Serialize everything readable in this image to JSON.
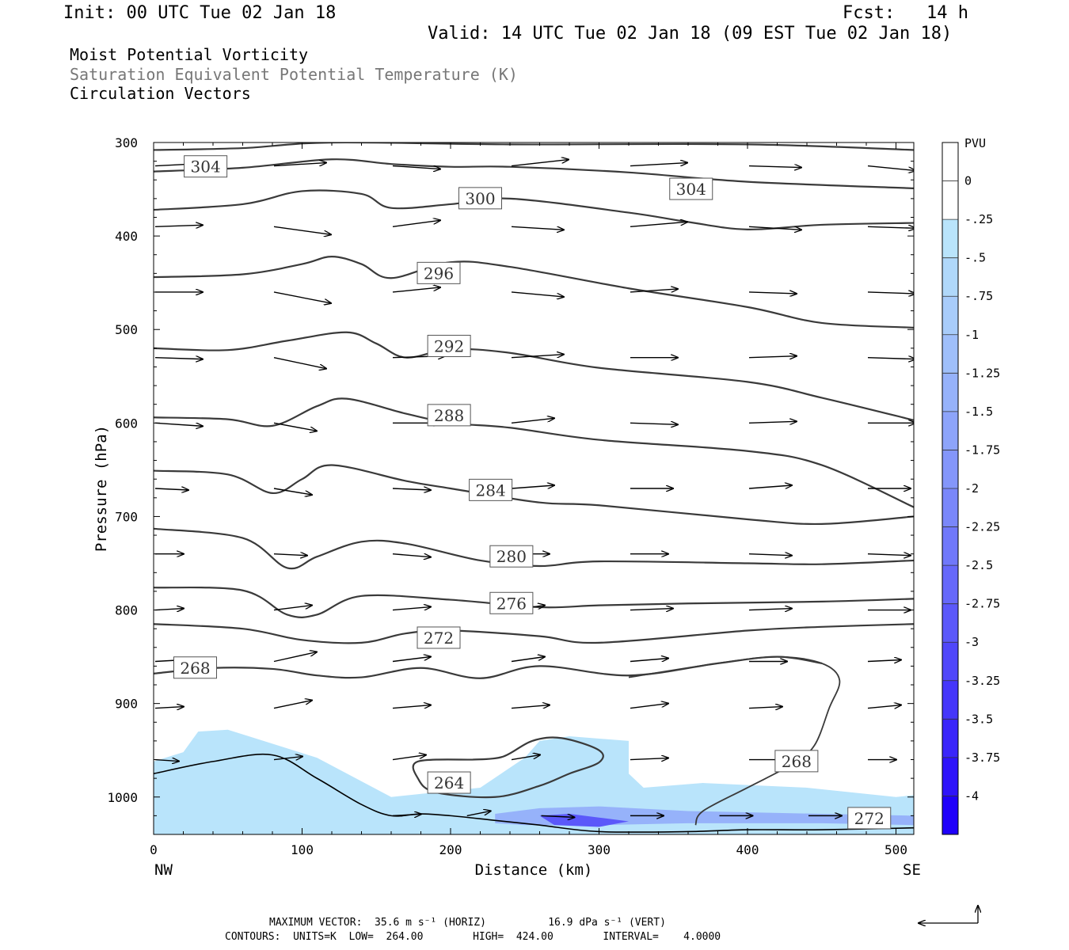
{
  "header": {
    "init": "Init: 00 UTC Tue 02 Jan 18",
    "fcst": "Fcst:   14 h",
    "valid": "Valid: 14 UTC Tue 02 Jan 18 (09 EST Tue 02 Jan 18)",
    "legend_lines": [
      {
        "text": "Moist Potential Vorticity",
        "color": "#000000"
      },
      {
        "text": "Saturation Equivalent Potential Temperature (K)",
        "color": "#777777"
      },
      {
        "text": "Circulation Vectors",
        "color": "#000000"
      }
    ]
  },
  "chart_data": {
    "type": "contour",
    "xlabel": "Distance (km)",
    "ylabel": "Pressure (hPa)",
    "xlim": [
      0,
      512
    ],
    "ylim_pressure": [
      300,
      1040
    ],
    "x_ticks": [
      0,
      100,
      200,
      300,
      400,
      500
    ],
    "y_ticks": [
      300,
      400,
      500,
      600,
      700,
      800,
      900,
      1000
    ],
    "x_end_labels": {
      "left": "NW",
      "right": "SE"
    },
    "colorbar": {
      "unit_label": "PVU",
      "levels": [
        "0",
        "-.25",
        "-.5",
        "-.75",
        "-1",
        "-1.25",
        "-1.5",
        "-1.75",
        "-2",
        "-2.25",
        "-2.5",
        "-2.75",
        "-3",
        "-3.25",
        "-3.5",
        "-3.75",
        "-4"
      ],
      "colors": [
        "#ffffff",
        "#ffffff",
        "#b9e4fb",
        "#b0d8fa",
        "#a8ccfa",
        "#9fbffa",
        "#96b2fa",
        "#8da4fa",
        "#8496fa",
        "#7a87fa",
        "#7078fa",
        "#6668fa",
        "#5b58fa",
        "#5047fa",
        "#4536fa",
        "#3a25fa",
        "#2e13fa",
        "#1f00fa"
      ]
    },
    "contour_labels": [
      {
        "value": "304",
        "x": 35,
        "p": 326
      },
      {
        "value": "304",
        "x": 362,
        "p": 350
      },
      {
        "value": "300",
        "x": 220,
        "p": 360
      },
      {
        "value": "296",
        "x": 192,
        "p": 440
      },
      {
        "value": "292",
        "x": 199,
        "p": 518
      },
      {
        "value": "288",
        "x": 199,
        "p": 592
      },
      {
        "value": "284",
        "x": 227,
        "p": 672
      },
      {
        "value": "280",
        "x": 241,
        "p": 743
      },
      {
        "value": "276",
        "x": 241,
        "p": 793
      },
      {
        "value": "272",
        "x": 192,
        "p": 830
      },
      {
        "value": "268",
        "x": 28,
        "p": 862
      },
      {
        "value": "264",
        "x": 199,
        "p": 985
      },
      {
        "value": "268",
        "x": 433,
        "p": 962
      },
      {
        "value": "272",
        "x": 482,
        "p": 1023
      }
    ],
    "theta_lines": [
      [
        [
          0,
          308
        ],
        [
          60,
          306
        ],
        [
          120,
          300
        ],
        [
          240,
          302
        ],
        [
          400,
          302
        ],
        [
          512,
          308
        ]
      ],
      [
        [
          0,
          331
        ],
        [
          60,
          327
        ],
        [
          120,
          318
        ],
        [
          160,
          323
        ],
        [
          200,
          326
        ],
        [
          240,
          326
        ],
        [
          320,
          332
        ],
        [
          400,
          342
        ],
        [
          512,
          349
        ]
      ],
      [
        [
          0,
          372
        ],
        [
          60,
          366
        ],
        [
          100,
          352
        ],
        [
          140,
          355
        ],
        [
          160,
          370
        ],
        [
          200,
          366
        ],
        [
          240,
          360
        ],
        [
          320,
          375
        ],
        [
          360,
          385
        ],
        [
          400,
          393
        ],
        [
          450,
          388
        ],
        [
          512,
          386
        ]
      ],
      [
        [
          0,
          444
        ],
        [
          60,
          441
        ],
        [
          100,
          430
        ],
        [
          120,
          422
        ],
        [
          140,
          430
        ],
        [
          160,
          445
        ],
        [
          200,
          428
        ],
        [
          240,
          433
        ],
        [
          320,
          456
        ],
        [
          400,
          476
        ],
        [
          450,
          493
        ],
        [
          512,
          498
        ]
      ],
      [
        [
          0,
          520
        ],
        [
          50,
          522
        ],
        [
          90,
          512
        ],
        [
          130,
          503
        ],
        [
          150,
          515
        ],
        [
          170,
          530
        ],
        [
          200,
          521
        ],
        [
          240,
          525
        ],
        [
          300,
          541
        ],
        [
          400,
          556
        ],
        [
          450,
          573
        ],
        [
          512,
          597
        ]
      ],
      [
        [
          0,
          594
        ],
        [
          50,
          596
        ],
        [
          80,
          603
        ],
        [
          110,
          582
        ],
        [
          130,
          574
        ],
        [
          170,
          590
        ],
        [
          200,
          600
        ],
        [
          240,
          605
        ],
        [
          300,
          618
        ],
        [
          400,
          630
        ],
        [
          450,
          645
        ],
        [
          512,
          690
        ]
      ],
      [
        [
          0,
          651
        ],
        [
          50,
          655
        ],
        [
          80,
          675
        ],
        [
          100,
          660
        ],
        [
          120,
          645
        ],
        [
          170,
          662
        ],
        [
          200,
          670
        ],
        [
          260,
          685
        ],
        [
          300,
          688
        ],
        [
          400,
          703
        ],
        [
          450,
          708
        ],
        [
          512,
          700
        ]
      ],
      [
        [
          0,
          713
        ],
        [
          60,
          723
        ],
        [
          90,
          755
        ],
        [
          110,
          743
        ],
        [
          140,
          727
        ],
        [
          170,
          729
        ],
        [
          220,
          747
        ],
        [
          260,
          753
        ],
        [
          300,
          748
        ],
        [
          400,
          750
        ],
        [
          450,
          751
        ],
        [
          512,
          747
        ]
      ],
      [
        [
          0,
          776
        ],
        [
          60,
          779
        ],
        [
          90,
          805
        ],
        [
          110,
          805
        ],
        [
          140,
          785
        ],
        [
          200,
          789
        ],
        [
          260,
          797
        ],
        [
          300,
          795
        ],
        [
          360,
          793
        ],
        [
          450,
          791
        ],
        [
          512,
          788
        ]
      ],
      [
        [
          0,
          815
        ],
        [
          60,
          820
        ],
        [
          100,
          832
        ],
        [
          140,
          835
        ],
        [
          170,
          825
        ],
        [
          200,
          822
        ],
        [
          260,
          828
        ],
        [
          300,
          835
        ],
        [
          400,
          822
        ],
        [
          450,
          818
        ],
        [
          512,
          815
        ]
      ],
      [
        [
          0,
          868
        ],
        [
          40,
          862
        ],
        [
          80,
          863
        ],
        [
          110,
          870
        ],
        [
          140,
          872
        ],
        [
          180,
          862
        ],
        [
          220,
          873
        ],
        [
          260,
          860
        ],
        [
          320,
          870
        ],
        [
          380,
          857
        ],
        [
          420,
          850
        ],
        [
          450,
          857
        ]
      ]
    ],
    "closed_268": [
      [
        320,
        872
      ],
      [
        380,
        857
      ],
      [
        420,
        850
      ],
      [
        450,
        857
      ],
      [
        462,
        875
      ],
      [
        455,
        905
      ],
      [
        445,
        945
      ],
      [
        430,
        965
      ],
      [
        400,
        990
      ],
      [
        370,
        1015
      ],
      [
        365,
        1030
      ]
    ],
    "closed_264": [
      [
        215,
        960
      ],
      [
        235,
        957
      ],
      [
        255,
        940
      ],
      [
        275,
        937
      ],
      [
        300,
        950
      ],
      [
        300,
        963
      ],
      [
        280,
        975
      ],
      [
        260,
        988
      ],
      [
        230,
        1000
      ],
      [
        190,
        995
      ],
      [
        178,
        980
      ],
      [
        178,
        962
      ],
      [
        215,
        960
      ]
    ],
    "shade_light": [
      [
        0,
        962
      ],
      [
        20,
        952
      ],
      [
        30,
        930
      ],
      [
        50,
        928
      ],
      [
        70,
        938
      ],
      [
        110,
        958
      ],
      [
        160,
        1000
      ],
      [
        220,
        990
      ],
      [
        250,
        958
      ],
      [
        260,
        940
      ],
      [
        280,
        935
      ],
      [
        320,
        940
      ],
      [
        320,
        975
      ],
      [
        330,
        990
      ],
      [
        370,
        985
      ],
      [
        440,
        990
      ],
      [
        500,
        1000
      ],
      [
        512,
        998
      ],
      [
        512,
        1040
      ],
      [
        0,
        1040
      ]
    ],
    "shade_mid": [
      [
        230,
        1018
      ],
      [
        260,
        1012
      ],
      [
        300,
        1010
      ],
      [
        360,
        1015
      ],
      [
        450,
        1018
      ],
      [
        512,
        1020
      ],
      [
        512,
        1030
      ],
      [
        450,
        1028
      ],
      [
        360,
        1028
      ],
      [
        300,
        1030
      ],
      [
        250,
        1030
      ],
      [
        230,
        1028
      ]
    ],
    "shade_dark": [
      [
        260,
        1020
      ],
      [
        280,
        1018
      ],
      [
        300,
        1022
      ],
      [
        320,
        1026
      ],
      [
        300,
        1032
      ],
      [
        270,
        1030
      ]
    ],
    "terrain": [
      [
        0,
        975
      ],
      [
        40,
        962
      ],
      [
        80,
        955
      ],
      [
        110,
        980
      ],
      [
        140,
        1008
      ],
      [
        160,
        1020
      ],
      [
        180,
        1018
      ],
      [
        200,
        1020
      ],
      [
        230,
        1025
      ],
      [
        260,
        1030
      ],
      [
        300,
        1037
      ],
      [
        360,
        1037
      ],
      [
        400,
        1035
      ],
      [
        450,
        1035
      ],
      [
        512,
        1033
      ]
    ],
    "vector_rows": [
      {
        "p": 325,
        "xs": [
          0,
          80,
          160,
          240,
          320,
          400,
          480
        ],
        "u": [
          1.0,
          1.1,
          1.0,
          1.2,
          1.2,
          1.1,
          1.0
        ],
        "w": [
          -3,
          -4,
          4,
          -8,
          -4,
          2,
          6
        ]
      },
      {
        "p": 390,
        "xs": [
          0,
          80,
          160,
          240,
          320,
          400,
          480
        ],
        "u": [
          1.0,
          1.2,
          1.0,
          1.1,
          1.2,
          1.1,
          1.0
        ],
        "w": [
          -2,
          10,
          -8,
          4,
          -6,
          4,
          2
        ]
      },
      {
        "p": 460,
        "xs": [
          0,
          80,
          160,
          240,
          320,
          400,
          480
        ],
        "u": [
          1.0,
          1.2,
          1.0,
          1.1,
          1.0,
          1.0,
          1.0
        ],
        "w": [
          0,
          14,
          -6,
          6,
          -4,
          2,
          2
        ]
      },
      {
        "p": 530,
        "xs": [
          0,
          80,
          160,
          240,
          320,
          400,
          480
        ],
        "u": [
          1.0,
          1.1,
          1.1,
          1.1,
          1.0,
          1.0,
          1.0
        ],
        "w": [
          2,
          14,
          -2,
          -4,
          0,
          -2,
          2
        ]
      },
      {
        "p": 600,
        "xs": [
          0,
          80,
          160,
          240,
          320,
          400,
          480
        ],
        "u": [
          1.0,
          0.9,
          1.0,
          0.9,
          1.0,
          1.0,
          1.0
        ],
        "w": [
          4,
          10,
          0,
          -6,
          2,
          -2,
          0
        ]
      },
      {
        "p": 670,
        "xs": [
          0,
          80,
          160,
          240,
          320,
          400,
          480
        ],
        "u": [
          0.7,
          0.8,
          0.8,
          0.9,
          0.9,
          0.9,
          0.9
        ],
        "w": [
          2,
          8,
          2,
          -4,
          0,
          -4,
          0
        ]
      },
      {
        "p": 740,
        "xs": [
          0,
          80,
          160,
          240,
          320,
          400,
          480
        ],
        "u": [
          0.6,
          0.7,
          0.8,
          0.8,
          0.8,
          0.9,
          0.9
        ],
        "w": [
          0,
          2,
          4,
          0,
          0,
          2,
          2
        ]
      },
      {
        "p": 800,
        "xs": [
          0,
          80,
          160,
          240,
          320,
          400,
          480
        ],
        "u": [
          0.6,
          0.8,
          0.8,
          0.7,
          0.9,
          0.9,
          0.9
        ],
        "w": [
          -2,
          -6,
          -4,
          -6,
          -2,
          -2,
          0
        ]
      },
      {
        "p": 855,
        "xs": [
          0,
          80,
          160,
          240,
          320,
          400,
          480
        ],
        "u": [
          0.6,
          0.9,
          0.8,
          0.7,
          0.8,
          0.8,
          0.7
        ],
        "w": [
          -2,
          -12,
          -6,
          -6,
          -4,
          0,
          -2
        ]
      },
      {
        "p": 905,
        "xs": [
          0,
          80,
          160,
          240,
          320,
          400,
          480
        ],
        "u": [
          0.6,
          0.8,
          0.8,
          0.8,
          0.8,
          0.7,
          0.7
        ],
        "w": [
          -2,
          -10,
          -4,
          -4,
          -6,
          -2,
          -4
        ]
      },
      {
        "p": 960,
        "xs": [
          0,
          80,
          160,
          240,
          320,
          400,
          480
        ],
        "u": [
          0.5,
          0.6,
          0.7,
          0.6,
          0.8,
          0.7,
          0.6
        ],
        "w": [
          2,
          -4,
          -6,
          -6,
          -2,
          0,
          0
        ]
      },
      {
        "p": 1020,
        "xs": [
          160,
          210,
          260,
          320,
          380,
          440
        ],
        "u": [
          0.6,
          0.5,
          0.7,
          0.7,
          0.7,
          0.7
        ],
        "w": [
          -2,
          -6,
          2,
          0,
          0,
          0
        ]
      }
    ],
    "reference_vector": {
      "label": "MAXIMUM VECTOR:",
      "horiz": "35.6 m s⁻¹ (HORIZ)",
      "vert": "16.9 dPa s⁻¹ (VERT)"
    }
  },
  "footer": {
    "max_vector_line": "MAXIMUM VECTOR:  35.6 m s⁻¹ (HORIZ)          16.9 dPa s⁻¹ (VERT)",
    "contours_line": "CONTOURS:  UNITS=K  LOW=  264.00        HIGH=  424.00        INTERVAL=    4.0000"
  }
}
